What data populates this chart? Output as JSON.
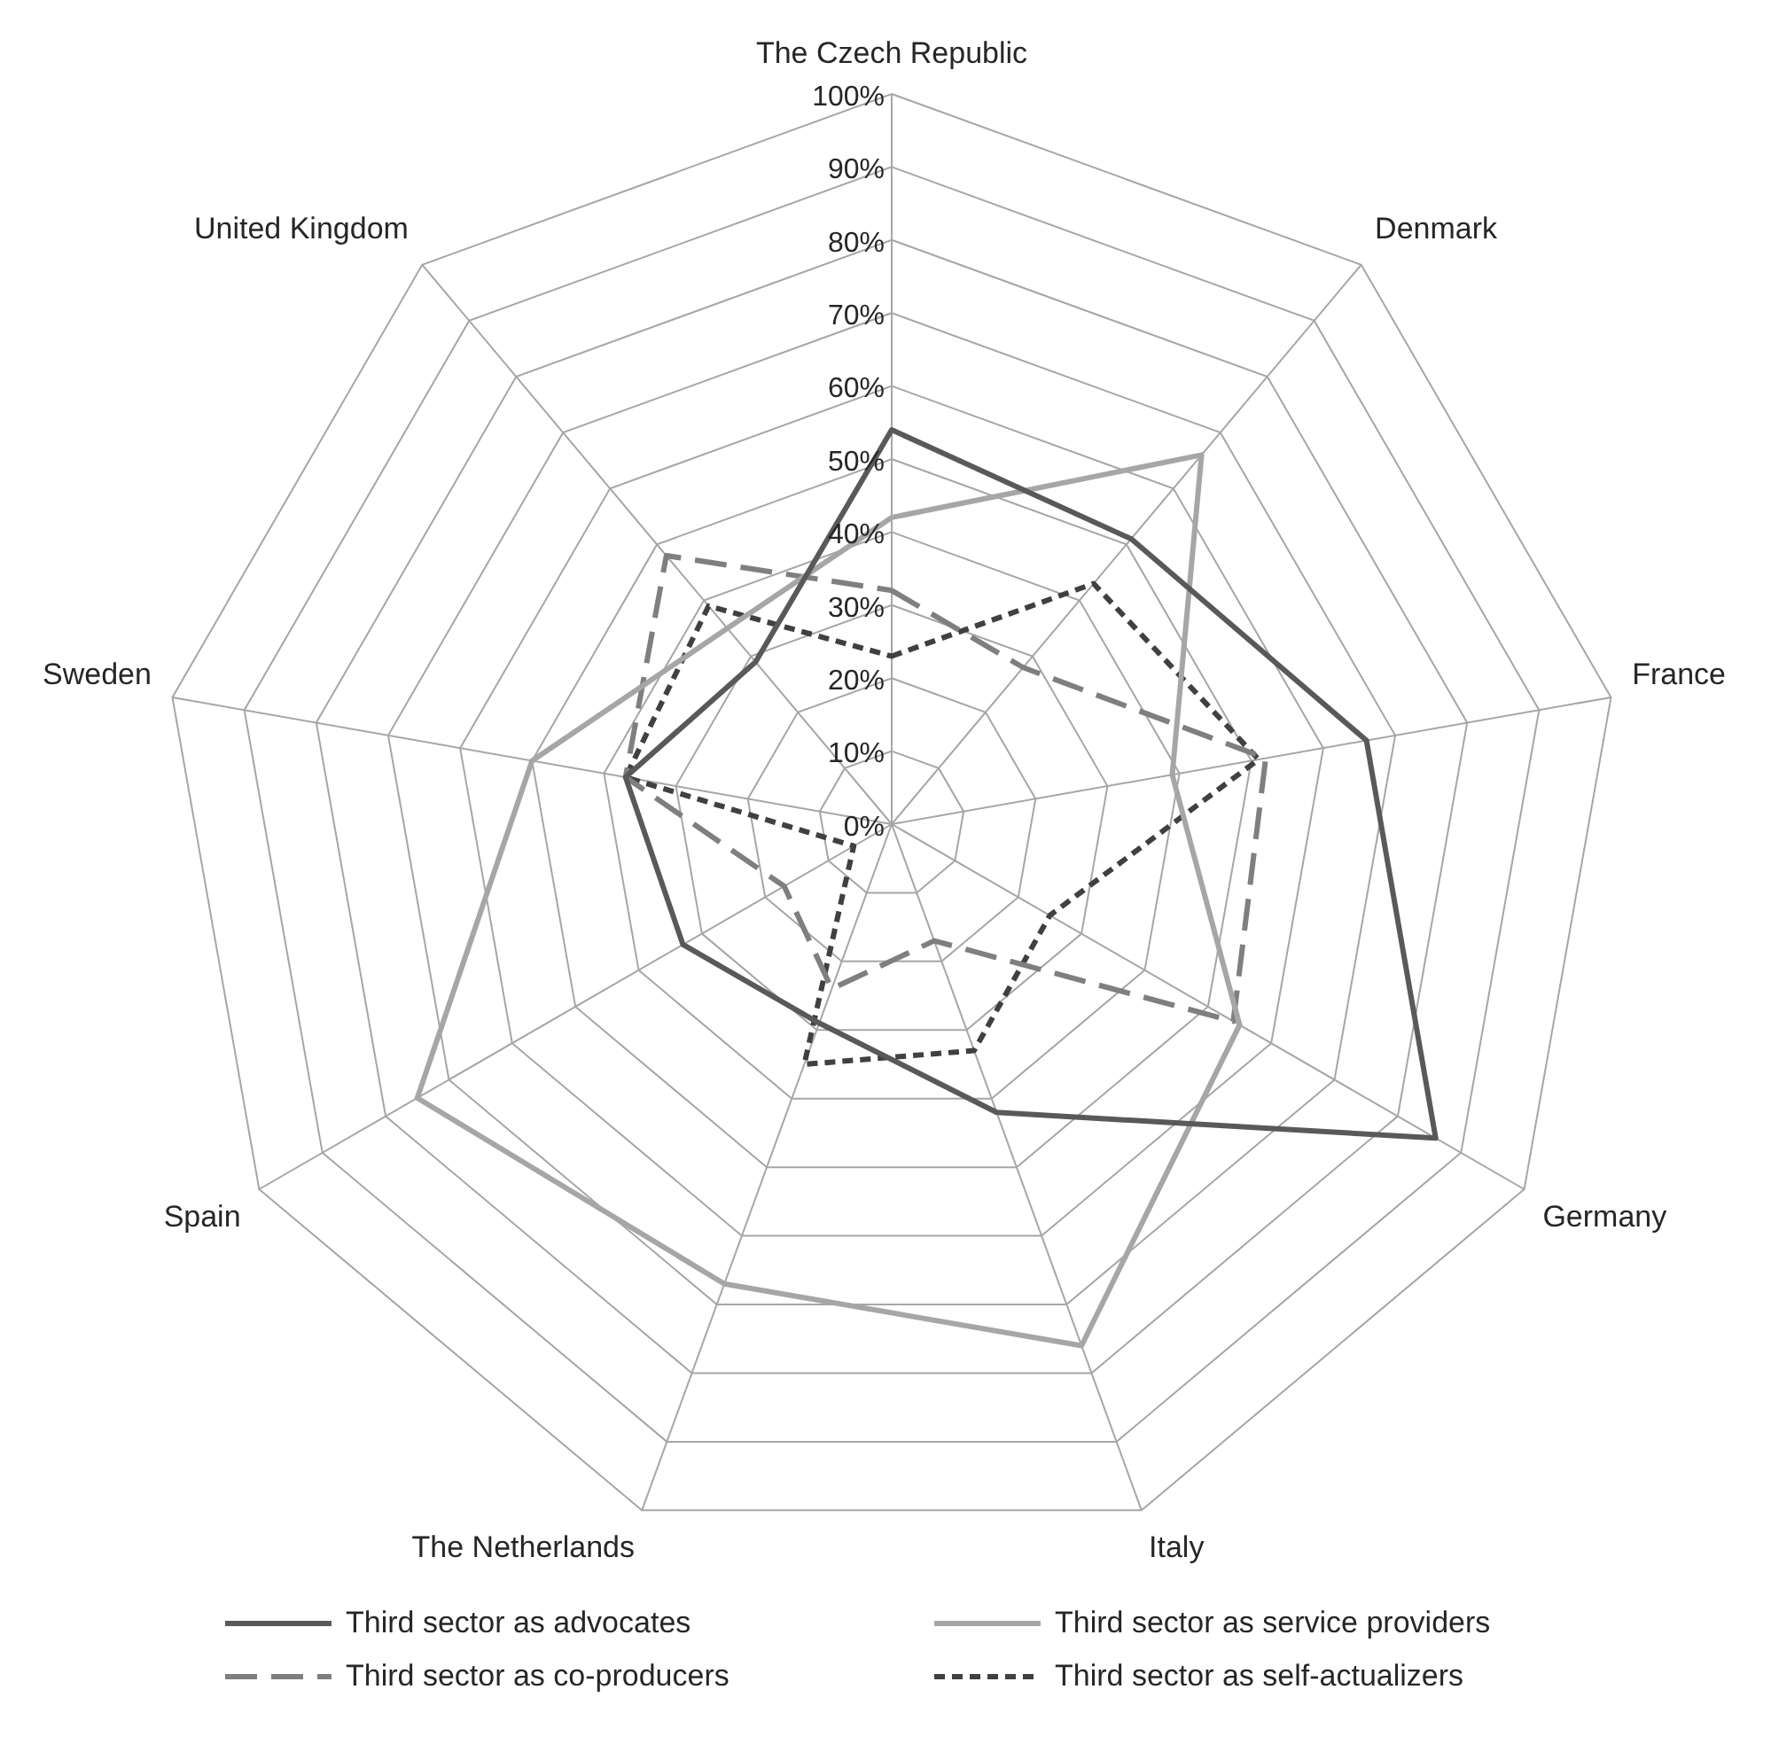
{
  "chart_data": {
    "type": "radar",
    "categories": [
      "The Czech Republic",
      "Denmark",
      "France",
      "Germany",
      "Italy",
      "The Netherlands",
      "Spain",
      "Sweden",
      "United Kingdom"
    ],
    "series": [
      {
        "name": "Third sector as advocates",
        "color": "#595959",
        "line_style": "solid",
        "values": [
          54,
          51,
          66,
          86,
          42,
          29,
          33,
          37,
          29
        ]
      },
      {
        "name": "Third sector as service providers",
        "color": "#a6a6a6",
        "line_style": "solid",
        "values": [
          42,
          66,
          39,
          55,
          76,
          67,
          75,
          50,
          35
        ]
      },
      {
        "name": "Third sector as co-producers",
        "color": "#7f7f7f",
        "line_style": "dashed",
        "values": [
          32,
          28,
          52,
          54,
          17,
          24,
          17,
          37,
          48
        ]
      },
      {
        "name": "Third sector as self-actualizers",
        "color": "#404040",
        "line_style": "dotted",
        "values": [
          23,
          43,
          51,
          25,
          33,
          35,
          6,
          37,
          39
        ]
      }
    ],
    "ylim": [
      0,
      100
    ],
    "yticks": [
      {
        "value": 0,
        "label": "0%"
      },
      {
        "value": 10,
        "label": "10%"
      },
      {
        "value": 20,
        "label": "20%"
      },
      {
        "value": 30,
        "label": "30%"
      },
      {
        "value": 40,
        "label": "40%"
      },
      {
        "value": 50,
        "label": "50%"
      },
      {
        "value": 60,
        "label": "60%"
      },
      {
        "value": 70,
        "label": "70%"
      },
      {
        "value": 80,
        "label": "80%"
      },
      {
        "value": 90,
        "label": "90%"
      },
      {
        "value": 100,
        "label": "100%"
      }
    ],
    "grid": true,
    "marker": "none",
    "legend": "bottom"
  }
}
